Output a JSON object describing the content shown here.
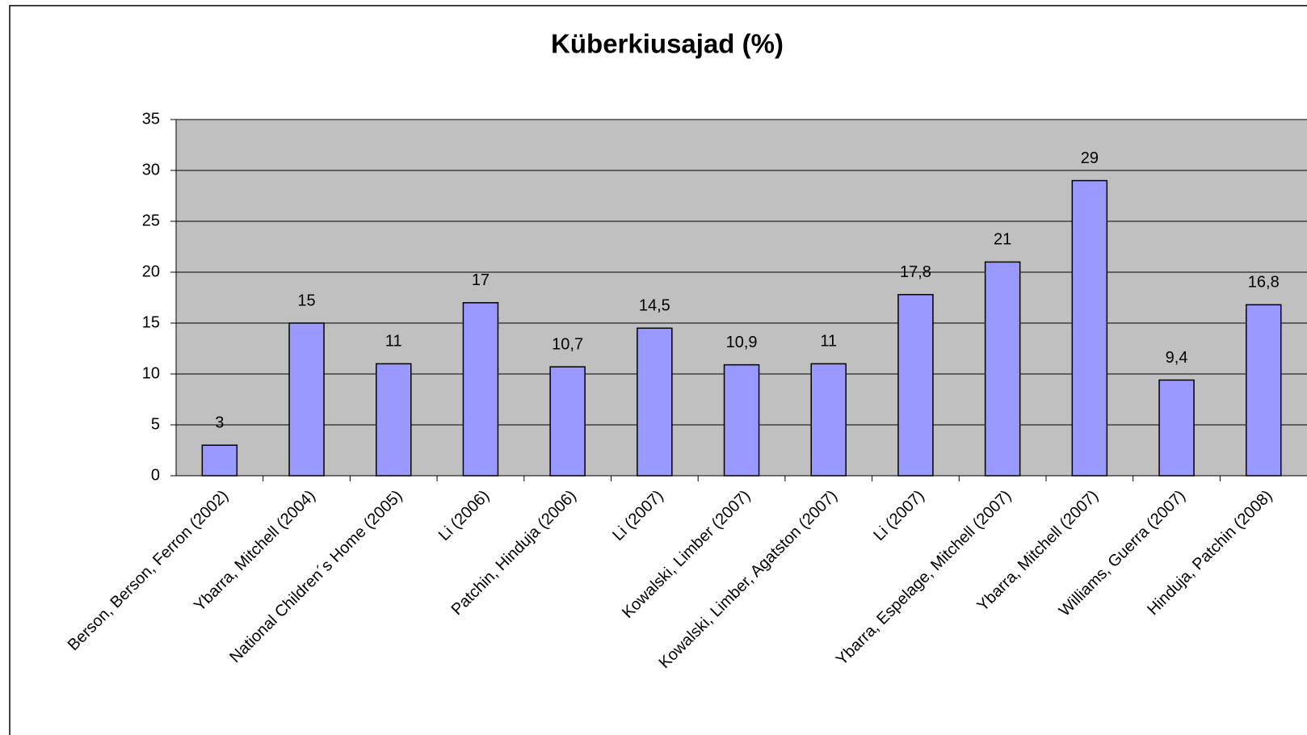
{
  "chart_data": {
    "type": "bar",
    "title": "Küberkiusajad (%)",
    "categories": [
      "Berson, Berson, Ferron (2002)",
      "Ybarra, Mitchell (2004)",
      "National Children´s Home (2005)",
      "Li (2006)",
      "Patchin, Hinduja (2006)",
      "Li (2007)",
      "Kowalski, Limber (2007)",
      "Kowalski, Limber, Agatston (2007)",
      "Li (2007)",
      "Ybarra, Espelage, Mitchell (2007)",
      "Ybarra, Mitchell (2007)",
      "Williams, Guerra (2007)",
      "Hinduja, Patchin (2008)"
    ],
    "values": [
      3,
      15,
      11,
      17,
      10.7,
      14.5,
      10.9,
      11,
      17.8,
      21,
      29,
      9.4,
      16.8
    ],
    "value_labels": [
      "3",
      "15",
      "11",
      "17",
      "10,7",
      "14,5",
      "10,9",
      "11",
      "17,8",
      "21",
      "29",
      "9,4",
      "16,8"
    ],
    "color": "#9999ff",
    "ylim": [
      0,
      35
    ],
    "yticks": [
      0,
      5,
      10,
      15,
      20,
      25,
      30,
      35
    ],
    "grid": true
  }
}
